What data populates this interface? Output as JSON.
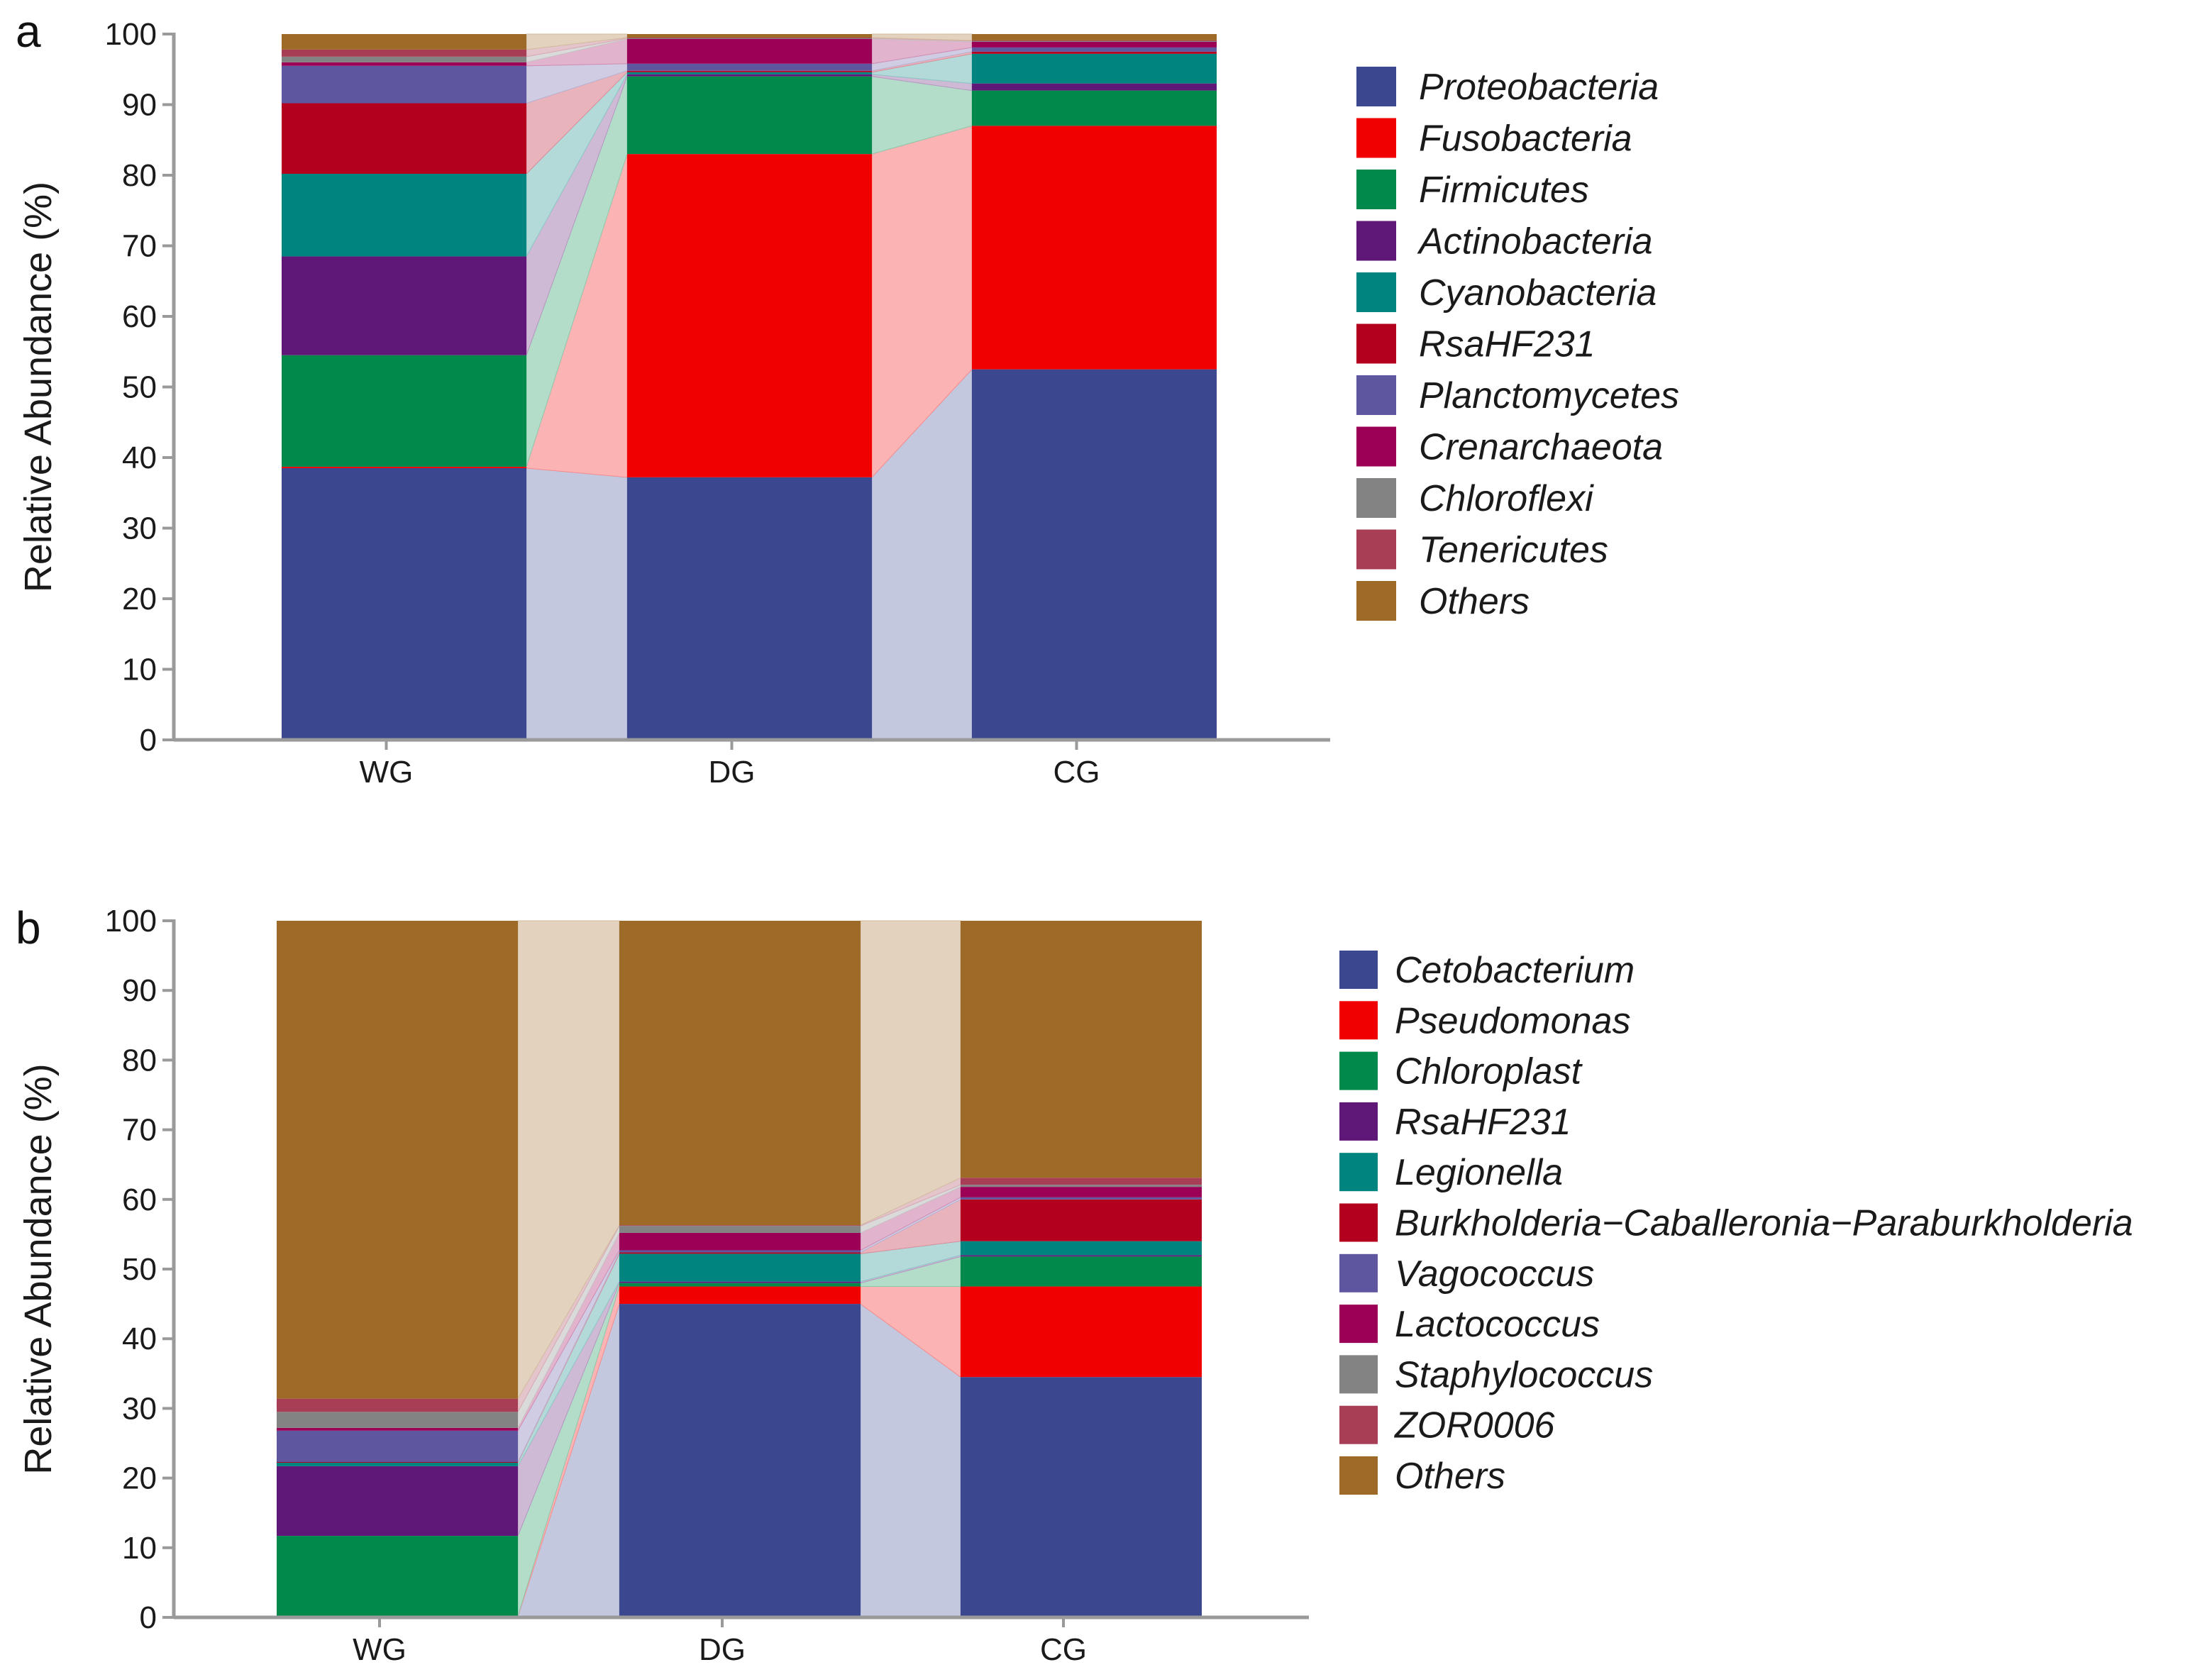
{
  "chart_data": [
    {
      "type": "bar",
      "stacked": true,
      "panel_label": "a",
      "ylabel": "Relative Abundance (%)",
      "ylim": [
        0,
        100
      ],
      "yticks": [
        0,
        10,
        20,
        30,
        40,
        50,
        60,
        70,
        80,
        90,
        100
      ],
      "categories": [
        "WG",
        "DG",
        "CG"
      ],
      "legend_position": "right",
      "series": [
        {
          "name": "Proteobacteria",
          "color": "#3b4890",
          "values": [
            38.5,
            37.2,
            52.5
          ]
        },
        {
          "name": "Fusobacteria",
          "color": "#f00000",
          "values": [
            0.2,
            45.8,
            34.5
          ]
        },
        {
          "name": "Firmicutes",
          "color": "#00894a",
          "values": [
            15.8,
            11.0,
            5.0
          ]
        },
        {
          "name": "Actinobacteria",
          "color": "#5f1877",
          "values": [
            14.0,
            0.3,
            1.0
          ]
        },
        {
          "name": "Cyanobacteria",
          "color": "#00847f",
          "values": [
            11.7,
            0.3,
            4.2
          ]
        },
        {
          "name": "RsaHF231",
          "color": "#b4001f",
          "values": [
            10.0,
            0.2,
            0.3
          ]
        },
        {
          "name": "Planctomycetes",
          "color": "#5f56a0",
          "values": [
            5.3,
            1.0,
            0.6
          ]
        },
        {
          "name": "Crenarchaeota",
          "color": "#9c0056",
          "values": [
            0.5,
            3.5,
            0.8
          ]
        },
        {
          "name": "Chloroflexi",
          "color": "#838383",
          "values": [
            0.8,
            0.1,
            0.1
          ]
        },
        {
          "name": "Tenericutes",
          "color": "#a83d56",
          "values": [
            1.0,
            0.1,
            0.1
          ]
        },
        {
          "name": "Others",
          "color": "#9e6a27",
          "values": [
            2.2,
            0.5,
            0.9
          ]
        }
      ]
    },
    {
      "type": "bar",
      "stacked": true,
      "panel_label": "b",
      "ylabel": "Relative Abundance (%)",
      "ylim": [
        0,
        100
      ],
      "yticks": [
        0,
        10,
        20,
        30,
        40,
        50,
        60,
        70,
        80,
        90,
        100
      ],
      "categories": [
        "WG",
        "DG",
        "CG"
      ],
      "legend_position": "right",
      "series": [
        {
          "name": "Cetobacterium",
          "color": "#3b4890",
          "values": [
            0.1,
            45.0,
            34.5
          ]
        },
        {
          "name": "Pseudomonas",
          "color": "#f00000",
          "values": [
            0.1,
            2.5,
            13.0
          ]
        },
        {
          "name": "Chloroplast",
          "color": "#00894a",
          "values": [
            11.5,
            0.5,
            4.3
          ]
        },
        {
          "name": "RsaHF231",
          "color": "#5f1877",
          "values": [
            10.0,
            0.2,
            0.2
          ]
        },
        {
          "name": "Legionella",
          "color": "#00847f",
          "values": [
            0.5,
            4.0,
            2.0
          ]
        },
        {
          "name": "Burkholderia−Caballeronia−Paraburkholderia",
          "color": "#b4001f",
          "values": [
            0.1,
            0.2,
            6.0
          ]
        },
        {
          "name": "Vagococcus",
          "color": "#5f56a0",
          "values": [
            4.5,
            0.3,
            0.3
          ]
        },
        {
          "name": "Lactococcus",
          "color": "#9c0056",
          "values": [
            0.4,
            2.5,
            1.5
          ]
        },
        {
          "name": "Staphylococcus",
          "color": "#838383",
          "values": [
            2.3,
            1.0,
            0.3
          ]
        },
        {
          "name": "ZOR0006",
          "color": "#a83d56",
          "values": [
            1.9,
            0.1,
            1.0
          ]
        },
        {
          "name": "Others",
          "color": "#9e6a27",
          "values": [
            68.6,
            43.7,
            36.9
          ]
        }
      ]
    }
  ]
}
